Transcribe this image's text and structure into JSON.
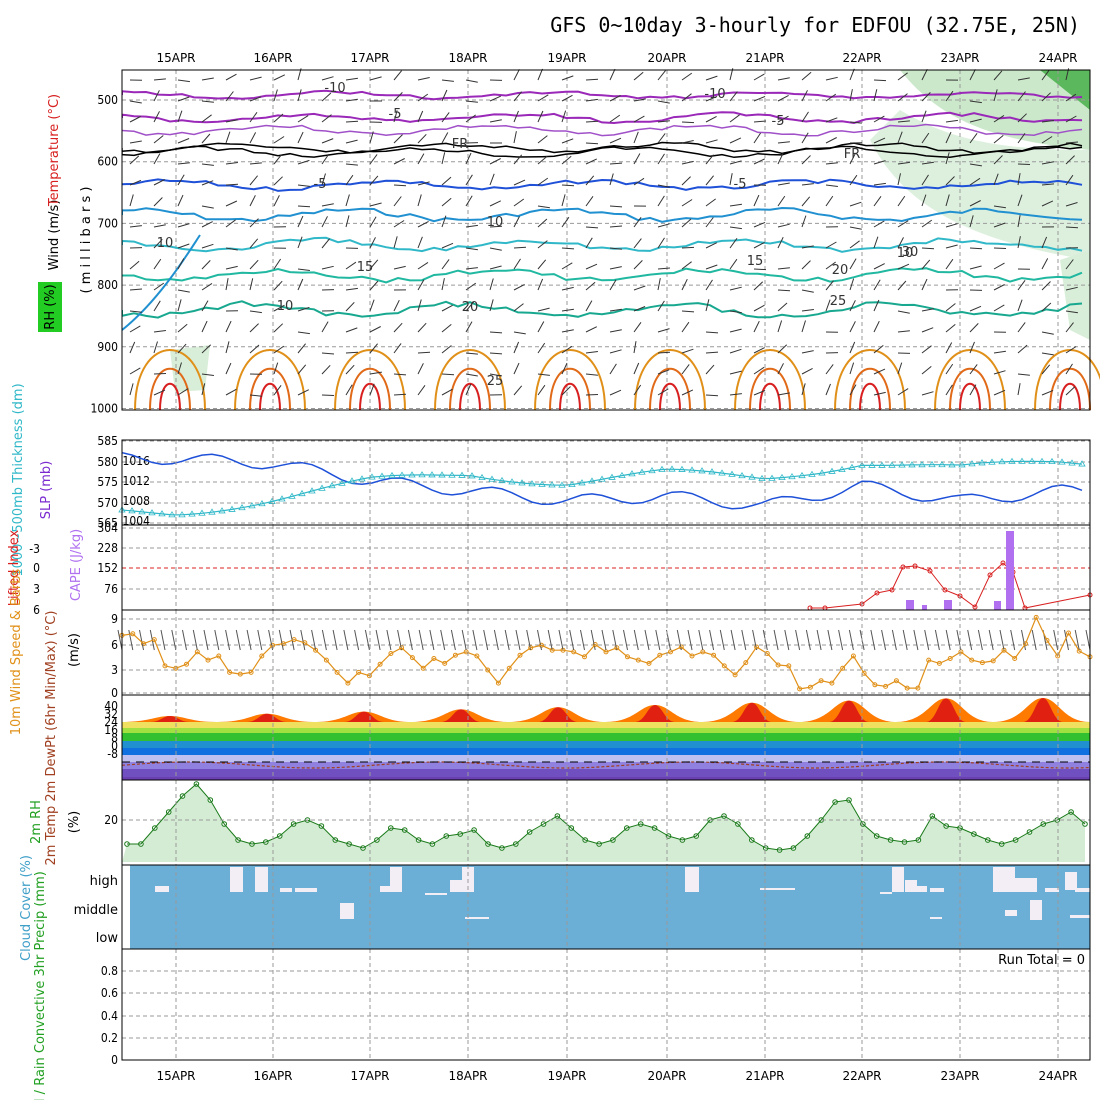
{
  "title": "GFS 0~10day 3-hourly for EDFOU (32.75E, 25N)",
  "dates": [
    "15APR",
    "16APR",
    "17APR",
    "18APR",
    "19APR",
    "20APR",
    "21APR",
    "22APR",
    "23APR",
    "24APR"
  ],
  "colors": {
    "frame": "#000000",
    "grid": "#9a9a9a",
    "purple": "#9a28b8",
    "blue": "#1e50d8",
    "cyan": "#30b8c8",
    "teal": "#18a890",
    "orange": "#e09018",
    "red": "#d82020",
    "green": "#22a022",
    "skyblue": "#6baed6"
  },
  "panels": {
    "upper": {
      "ylabels": {
        "wind": "Wind (m/s)",
        "temp": "Temperature (°C)",
        "rh": "RH (%)",
        "unit": "( m i l l i b a r s )"
      },
      "yticks": [
        "500",
        "600",
        "700",
        "800",
        "900",
        "1000"
      ],
      "contour_labels": [
        "-10",
        "-10",
        "-5",
        "-5",
        "FR",
        "FR",
        "-5",
        "-5",
        "10",
        "10",
        "10",
        "15",
        "15",
        "20",
        "20",
        "25",
        "25",
        "30",
        "10"
      ]
    },
    "pressure": {
      "ylabel_left": "1000~500mb Thickness (dm)",
      "ylabel_right": "SLP (mb)",
      "ticks_left": [
        "585",
        "580",
        "575",
        "570",
        "565"
      ],
      "ticks_right": [
        "1016",
        "1012",
        "1008",
        "1004"
      ]
    },
    "cape": {
      "ylabel_left": "Lifted Index",
      "ylabel_right": "CAPE (J/kg)",
      "ticks_left": [
        "-3",
        "0",
        "3",
        "6"
      ],
      "ticks_right": [
        "304",
        "228",
        "152",
        "76"
      ]
    },
    "wind10": {
      "ylabel": "10m Wind Speed & Barbs",
      "unit": "(m/s)",
      "ticks": [
        "9",
        "6",
        "3",
        "0"
      ]
    },
    "temp2m": {
      "ylabel": "2m Temp 2m DewPt (6hr Min/Max) (°C)",
      "ticks": [
        "40",
        "32",
        "24",
        "16",
        "8",
        "0",
        "-8"
      ]
    },
    "rh2m": {
      "ylabel": "2m RH",
      "unit": "(%)",
      "ticks": [
        "20"
      ]
    },
    "cloud": {
      "ylabel": "Cloud Cover (%)",
      "ticks": [
        "high",
        "middle",
        "low"
      ]
    },
    "precip": {
      "ylabel": "Total / Rain Convective 3hr Precip (mm)",
      "ticks": [
        "0.8",
        "0.6",
        "0.4",
        "0.2",
        "0"
      ],
      "run_total": "Run Total = 0"
    }
  },
  "chart_data": {
    "type": "line",
    "x": [
      "15APR",
      "16APR",
      "17APR",
      "18APR",
      "19APR",
      "20APR",
      "21APR",
      "22APR",
      "23APR",
      "24APR"
    ],
    "series": [
      {
        "name": "SLP (mb)",
        "values": [
          1016.5,
          1015.5,
          1012,
          1010,
          1008,
          1009,
          1007,
          1011,
          1008,
          1010
        ]
      },
      {
        "name": "1000~500mb Thickness (dm)",
        "values": [
          567.5,
          571,
          575,
          577,
          575,
          577,
          576,
          580,
          578,
          580
        ]
      },
      {
        "name": "10m Wind Speed (m/s)",
        "values": [
          7,
          3.5,
          5,
          4,
          5,
          5,
          1,
          1,
          5,
          9
        ]
      },
      {
        "name": "2m Temp (°C)",
        "values": [
          20,
          22,
          25,
          30,
          34,
          36,
          37,
          38,
          39,
          38
        ]
      },
      {
        "name": "2m RH (%)",
        "values": [
          38,
          12,
          20,
          11,
          14,
          9,
          18,
          30,
          15,
          22
        ]
      },
      {
        "name": "3hr Precip (mm)",
        "values": [
          0,
          0,
          0,
          0,
          0,
          0,
          0,
          0,
          0,
          0
        ]
      }
    ],
    "xlabel": "",
    "ylabel": ""
  }
}
